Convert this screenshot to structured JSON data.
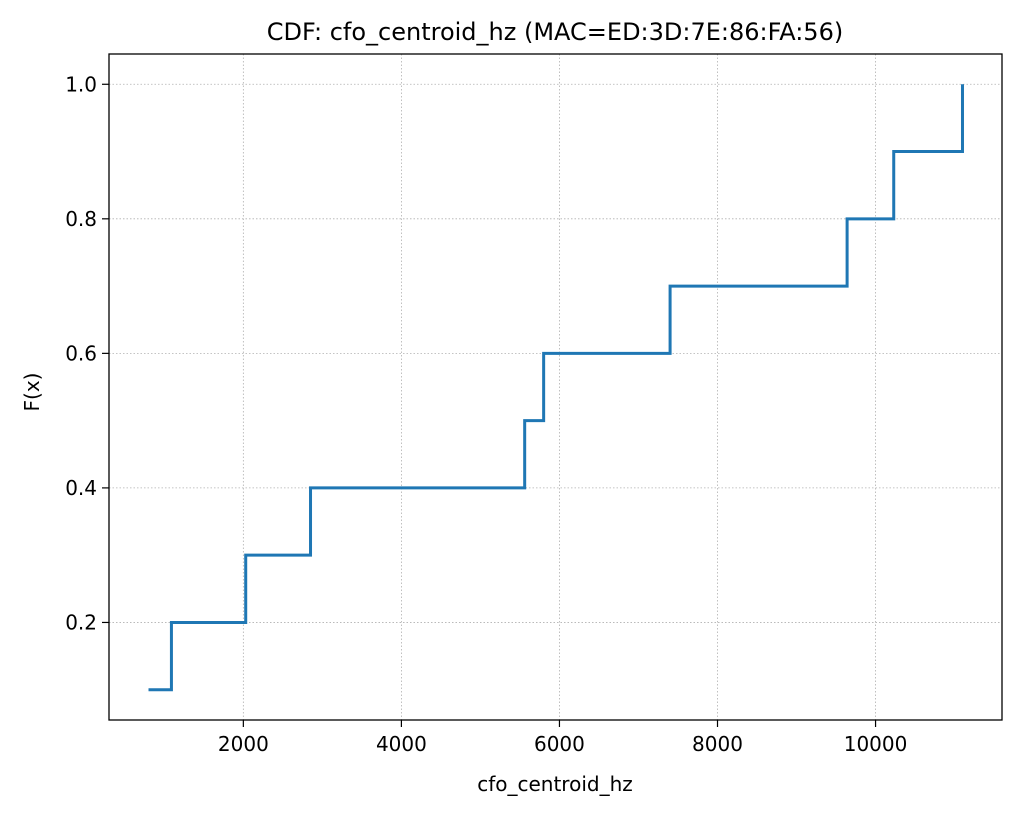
{
  "chart_data": {
    "type": "line",
    "drawstyle": "steps-post",
    "title": "CDF: cfo_centroid_hz (MAC=ED:3D:7E:86:FA:56)",
    "xlabel": "cfo_centroid_hz",
    "ylabel": "F(x)",
    "xlim": [
      300,
      11600
    ],
    "ylim": [
      0.055,
      1.045
    ],
    "xticks": [
      2000,
      4000,
      6000,
      8000,
      10000
    ],
    "xtick_labels": [
      "2000",
      "4000",
      "6000",
      "8000",
      "10000"
    ],
    "yticks": [
      0.2,
      0.4,
      0.6,
      0.8,
      1.0
    ],
    "ytick_labels": [
      "0.2",
      "0.4",
      "0.6",
      "0.8",
      "1.0"
    ],
    "grid": true,
    "series": [
      {
        "color": "#1f77b4",
        "x": [
          800,
          1090,
          2030,
          2850,
          5560,
          5800,
          7400,
          9640,
          10230,
          11100
        ],
        "y": [
          0.1,
          0.2,
          0.3,
          0.4,
          0.5,
          0.6,
          0.7,
          0.8,
          0.9,
          1.0
        ]
      }
    ]
  }
}
